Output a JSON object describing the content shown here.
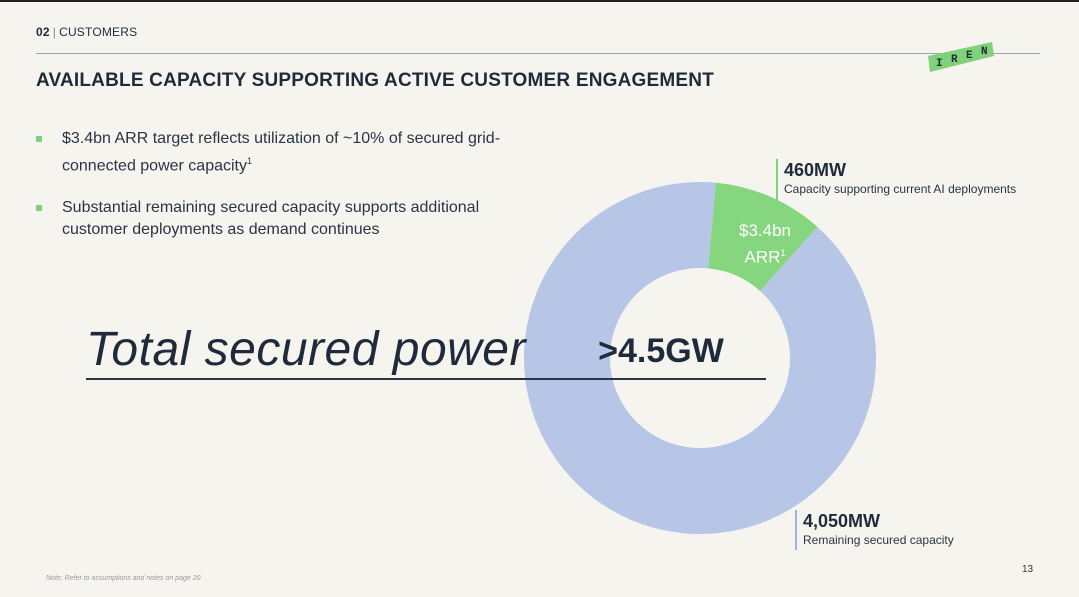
{
  "header": {
    "section_number": "02",
    "section_name": "CUSTOMERS",
    "title": "AVAILABLE CAPACITY SUPPORTING ACTIVE CUSTOMER ENGAGEMENT"
  },
  "logo": {
    "letters": [
      "I",
      "R",
      "E",
      "N"
    ],
    "color": "#7fd17a"
  },
  "bullets": [
    {
      "text": "$3.4bn ARR target reflects utilization of ~10% of secured grid-connected power capacity",
      "footnote": "1"
    },
    {
      "text": "Substantial remaining secured capacity supports additional customer deployments as demand continues"
    }
  ],
  "headline": "Total secured power",
  "chart_data": {
    "type": "pie",
    "categories": [
      "Capacity supporting current AI deployments",
      "Remaining secured capacity"
    ],
    "values": [
      460,
      4050
    ],
    "colors": [
      "#86d67f",
      "#b7c5e6"
    ],
    "center_label": ">4.5GW",
    "slice_label": {
      "line1": "$3.4bn",
      "line2": "ARR",
      "footnote": "1"
    },
    "callouts": [
      {
        "value": "460MW",
        "description": "Capacity supporting current AI deployments"
      },
      {
        "value": "4,050MW",
        "description": "Remaining secured capacity"
      }
    ]
  },
  "footer": {
    "note": "Note: Refer to assumptions and notes on page 20",
    "page_number": "13"
  }
}
